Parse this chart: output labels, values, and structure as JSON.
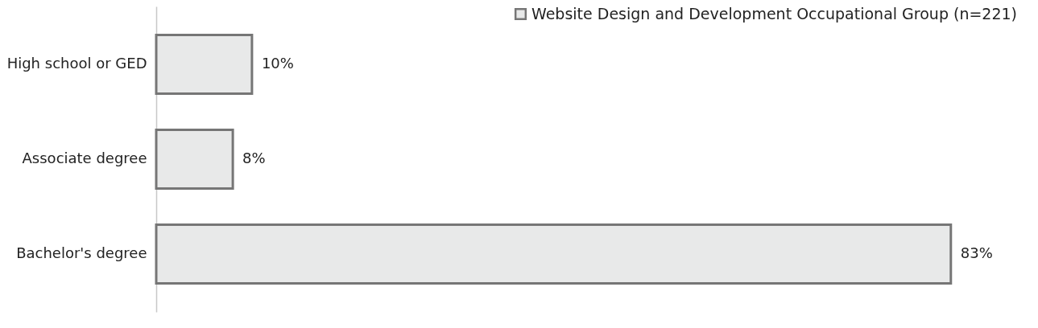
{
  "chart_data": {
    "type": "bar",
    "orientation": "horizontal",
    "categories": [
      "High school or GED",
      "Associate degree",
      "Bachelor's degree"
    ],
    "series": [
      {
        "name": "Website Design and Development Occupational Group (n=221)",
        "color": "#e8e9e9",
        "values": [
          10,
          8,
          83
        ],
        "value_labels": [
          "10%",
          "8%",
          "83%"
        ]
      }
    ],
    "legend": "top right",
    "tick_labels": "y"
  }
}
